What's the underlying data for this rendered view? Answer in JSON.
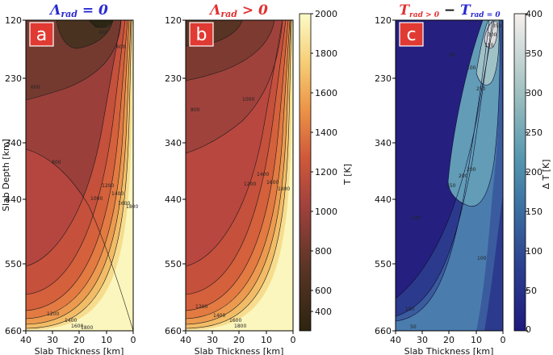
{
  "chart_data": [
    {
      "type": "heatmap",
      "panel_label": "a",
      "title": "Λrad = 0",
      "title_main": "Λ",
      "title_sub": "rad",
      "title_rest": " = 0",
      "title_color": "#2a2ad0",
      "xlabel": "Slab Thickness [km]",
      "ylabel": "Slab Depth [km]",
      "xlim": [
        40,
        0
      ],
      "ylim": [
        660,
        120
      ],
      "xticks": [
        "40",
        "30",
        "20",
        "10",
        "0"
      ],
      "yticks": [
        "120",
        "230",
        "340",
        "440",
        "550",
        "660"
      ],
      "contour_labels": [
        "400",
        "600",
        "600",
        "800",
        "1000",
        "1200",
        "1400",
        "1600",
        "1800",
        "1200",
        "1400",
        "1600",
        "1800"
      ],
      "colormap": "afmhot",
      "vmin": 400,
      "vmax": 2000
    },
    {
      "type": "heatmap",
      "panel_label": "b",
      "title": "Λrad > 0",
      "title_main": "Λ",
      "title_sub": "rad",
      "title_rest": " > 0",
      "title_color": "#e03030",
      "xlabel": "Slab Thickness [km]",
      "xlim": [
        40,
        0
      ],
      "ylim": [
        660,
        120
      ],
      "xticks": [
        "40",
        "30",
        "20",
        "10",
        "0"
      ],
      "yticks": [
        "120",
        "230",
        "340",
        "440",
        "550",
        "660"
      ],
      "contour_labels": [
        "800",
        "1000",
        "1200",
        "1400",
        "1600",
        "1800",
        "1200",
        "1400",
        "1600",
        "1800"
      ],
      "colormap": "afmhot",
      "vmin": 400,
      "vmax": 2000,
      "colorbar": {
        "label": "T [K]",
        "ticks": [
          "400",
          "600",
          "800",
          "1000",
          "1200",
          "1400",
          "1600",
          "1800",
          "2000"
        ]
      }
    },
    {
      "type": "heatmap",
      "panel_label": "c",
      "title": "Trad > 0 − Trad = 0",
      "title_a": "T",
      "title_a_sub": "rad > 0",
      "title_a_color": "#e03030",
      "title_minus": " − ",
      "title_b": "T",
      "title_b_sub": "rad = 0",
      "title_b_color": "#2a2ad0",
      "xlabel": "Slab Thickness [km]",
      "xlim": [
        40,
        0
      ],
      "ylim": [
        660,
        120
      ],
      "xticks": [
        "40",
        "30",
        "20",
        "10",
        "0"
      ],
      "yticks": [
        "120",
        "230",
        "340",
        "440",
        "550",
        "660"
      ],
      "contour_labels": [
        "50",
        "100",
        "150",
        "200",
        "250",
        "300",
        "350",
        "100",
        "150",
        "200",
        "150",
        "100",
        "50"
      ],
      "colormap": "blues",
      "vmin": 0,
      "vmax": 400,
      "colorbar": {
        "label": "Δ T [K]",
        "ticks": [
          "0",
          "50",
          "100",
          "150",
          "200",
          "250",
          "300",
          "350",
          "400"
        ]
      }
    }
  ]
}
